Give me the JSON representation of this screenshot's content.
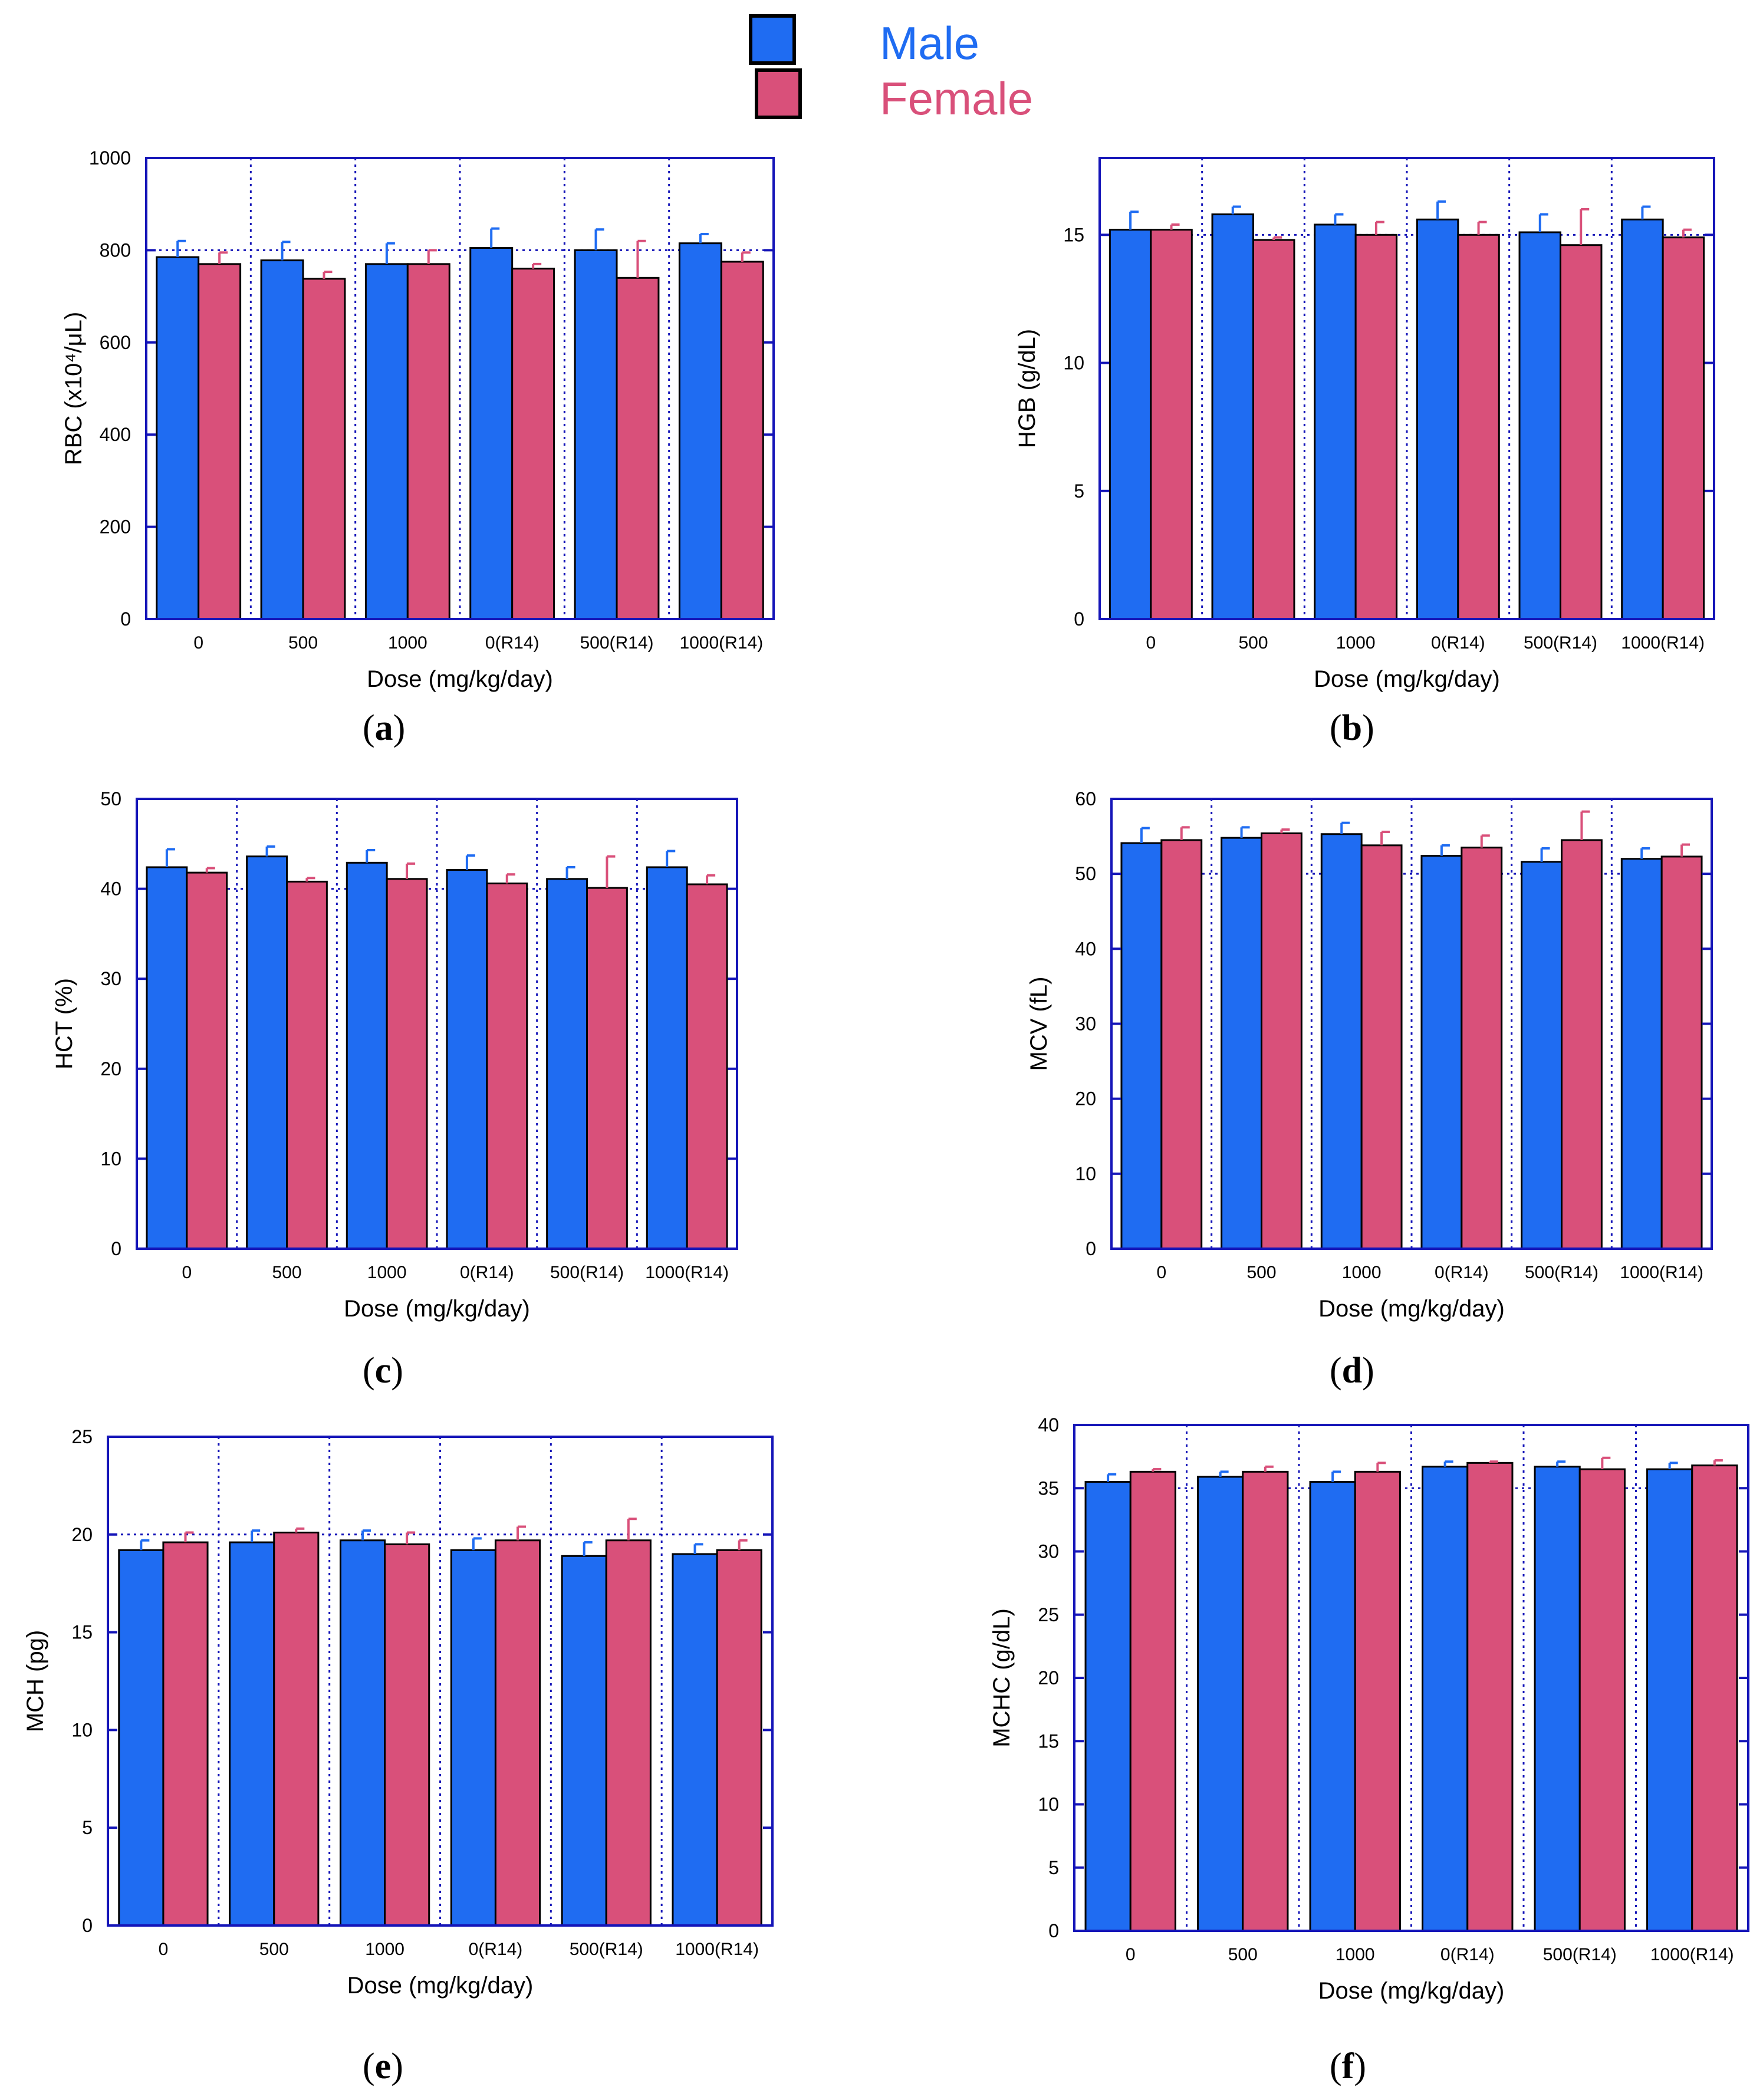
{
  "legend": {
    "male_label": "Male",
    "female_label": "Female",
    "male_color": "#1f6cf2",
    "female_color": "#d9507a"
  },
  "colors": {
    "axis": "#1515b8",
    "bar_edge": "#000000",
    "male_err": "#1f6cf2",
    "female_err": "#d9507a"
  },
  "chart_data": [
    {
      "id": "a",
      "caption": "a",
      "type": "bar",
      "title": "",
      "xlabel": "Dose (mg/kg/day)",
      "ylabel": "RBC (x10⁴/μL)",
      "categories": [
        "0",
        "500",
        "1000",
        "0(R14)",
        "500(R14)",
        "1000(R14)"
      ],
      "ylim": [
        0,
        1000
      ],
      "yticks": [
        0,
        200,
        400,
        600,
        800,
        1000
      ],
      "ref_line": 800,
      "series": [
        {
          "name": "Male",
          "values": [
            785,
            778,
            770,
            805,
            800,
            815
          ],
          "err": [
            35,
            40,
            45,
            42,
            45,
            20
          ]
        },
        {
          "name": "Female",
          "values": [
            770,
            738,
            770,
            760,
            740,
            775
          ],
          "err": [
            25,
            15,
            30,
            10,
            80,
            20
          ]
        }
      ]
    },
    {
      "id": "b",
      "caption": "b",
      "type": "bar",
      "title": "",
      "xlabel": "Dose (mg/kg/day)",
      "ylabel": "HGB (g/dL)",
      "categories": [
        "0",
        "500",
        "1000",
        "0(R14)",
        "500(R14)",
        "1000(R14)"
      ],
      "ylim": [
        0,
        18
      ],
      "yticks": [
        0,
        5,
        10,
        15
      ],
      "ref_line": 15,
      "series": [
        {
          "name": "Male",
          "values": [
            15.2,
            15.8,
            15.4,
            15.6,
            15.1,
            15.6
          ],
          "err": [
            0.7,
            0.3,
            0.4,
            0.7,
            0.7,
            0.5
          ]
        },
        {
          "name": "Female",
          "values": [
            15.2,
            14.8,
            15.0,
            15.0,
            14.6,
            14.9
          ],
          "err": [
            0.2,
            0.1,
            0.5,
            0.5,
            1.4,
            0.3
          ]
        }
      ]
    },
    {
      "id": "c",
      "caption": "c",
      "type": "bar",
      "title": "",
      "xlabel": "Dose (mg/kg/day)",
      "ylabel": "HCT (%)",
      "categories": [
        "0",
        "500",
        "1000",
        "0(R14)",
        "500(R14)",
        "1000(R14)"
      ],
      "ylim": [
        0,
        50
      ],
      "yticks": [
        0,
        10,
        20,
        30,
        40,
        50
      ],
      "ref_line": 40,
      "series": [
        {
          "name": "Male",
          "values": [
            42.4,
            43.6,
            42.9,
            42.1,
            41.1,
            42.4
          ],
          "err": [
            2.0,
            1.1,
            1.4,
            1.6,
            1.3,
            1.8
          ]
        },
        {
          "name": "Female",
          "values": [
            41.8,
            40.8,
            41.1,
            40.6,
            40.1,
            40.5
          ],
          "err": [
            0.5,
            0.4,
            1.7,
            1.0,
            3.5,
            1.0
          ]
        }
      ]
    },
    {
      "id": "d",
      "caption": "d",
      "type": "bar",
      "title": "",
      "xlabel": "Dose (mg/kg/day)",
      "ylabel": "MCV (fL)",
      "categories": [
        "0",
        "500",
        "1000",
        "0(R14)",
        "500(R14)",
        "1000(R14)"
      ],
      "ylim": [
        0,
        60
      ],
      "yticks": [
        0,
        10,
        20,
        30,
        40,
        50,
        60
      ],
      "ref_line": 50,
      "series": [
        {
          "name": "Male",
          "values": [
            54.1,
            54.8,
            55.3,
            52.4,
            51.6,
            52.0
          ],
          "err": [
            2.0,
            1.4,
            1.5,
            1.4,
            1.8,
            1.4
          ]
        },
        {
          "name": "Female",
          "values": [
            54.5,
            55.4,
            53.8,
            53.5,
            54.5,
            52.3
          ],
          "err": [
            1.7,
            0.5,
            1.8,
            1.6,
            3.8,
            1.6
          ]
        }
      ]
    },
    {
      "id": "e",
      "caption": "e",
      "type": "bar",
      "title": "",
      "xlabel": "Dose (mg/kg/day)",
      "ylabel": "MCH (pg)",
      "categories": [
        "0",
        "500",
        "1000",
        "0(R14)",
        "500(R14)",
        "1000(R14)"
      ],
      "ylim": [
        0,
        25
      ],
      "yticks": [
        0,
        5,
        10,
        15,
        20,
        25
      ],
      "ref_line": 20,
      "series": [
        {
          "name": "Male",
          "values": [
            19.2,
            19.6,
            19.7,
            19.2,
            18.9,
            19.0
          ],
          "err": [
            0.5,
            0.6,
            0.5,
            0.6,
            0.7,
            0.5
          ]
        },
        {
          "name": "Female",
          "values": [
            19.6,
            20.1,
            19.5,
            19.7,
            19.7,
            19.2
          ],
          "err": [
            0.5,
            0.2,
            0.6,
            0.7,
            1.1,
            0.5
          ]
        }
      ]
    },
    {
      "id": "f",
      "caption": "f",
      "type": "bar",
      "title": "",
      "xlabel": "Dose (mg/kg/day)",
      "ylabel": "MCHC (g/dL)",
      "categories": [
        "0",
        "500",
        "1000",
        "0(R14)",
        "500(R14)",
        "1000(R14)"
      ],
      "ylim": [
        0,
        40
      ],
      "yticks": [
        0,
        5,
        10,
        15,
        20,
        25,
        30,
        35,
        40
      ],
      "ref_line": 35,
      "series": [
        {
          "name": "Male",
          "values": [
            35.5,
            35.9,
            35.5,
            36.7,
            36.7,
            36.5
          ],
          "err": [
            0.6,
            0.4,
            0.8,
            0.4,
            0.4,
            0.5
          ]
        },
        {
          "name": "Female",
          "values": [
            36.3,
            36.3,
            36.3,
            37.0,
            36.5,
            36.8
          ],
          "err": [
            0.2,
            0.4,
            0.7,
            0.1,
            0.9,
            0.4
          ]
        }
      ]
    }
  ]
}
